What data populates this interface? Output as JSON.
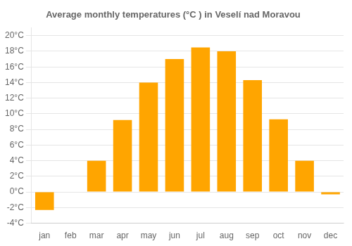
{
  "chart_data": {
    "type": "bar",
    "title": "Average monthly temperatures (°C ) in Veselí nad Moravou",
    "categories": [
      "jan",
      "feb",
      "mar",
      "apr",
      "may",
      "jun",
      "jul",
      "aug",
      "sep",
      "oct",
      "nov",
      "dec"
    ],
    "values": [
      -2.3,
      0.0,
      4.0,
      9.2,
      14.0,
      17.0,
      18.5,
      18.0,
      14.3,
      9.3,
      4.0,
      -0.3
    ],
    "color": "#FFA500",
    "ylim": [
      -4,
      21
    ],
    "yticks": [
      {
        "value": -4,
        "label": "-4°C"
      },
      {
        "value": -2,
        "label": "-2°C"
      },
      {
        "value": 0,
        "label": "0°C"
      },
      {
        "value": 2,
        "label": "2°C"
      },
      {
        "value": 4,
        "label": "4°C"
      },
      {
        "value": 6,
        "label": "6°C"
      },
      {
        "value": 8,
        "label": "8°C"
      },
      {
        "value": 10,
        "label": "10°C"
      },
      {
        "value": 12,
        "label": "12°C"
      },
      {
        "value": 14,
        "label": "14°C"
      },
      {
        "value": 16,
        "label": "16°C"
      },
      {
        "value": 18,
        "label": "18°C"
      },
      {
        "value": 20,
        "label": "20°C"
      }
    ],
    "grid": true
  }
}
